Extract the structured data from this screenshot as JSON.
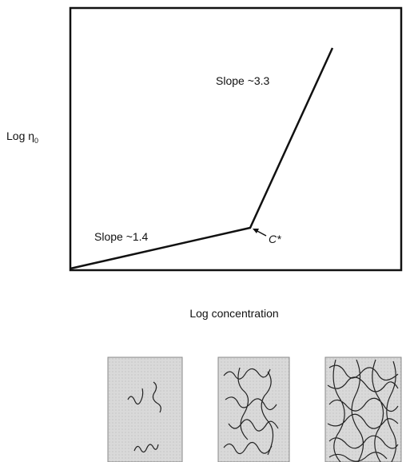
{
  "y_axis_label": {
    "text": "Log η",
    "subscript": "0"
  },
  "x_axis_label": "Log concentration",
  "upper_slope_label": "Slope ~3.3",
  "lower_slope_label": "Slope ~1.4",
  "critical_point_label": "C*"
}
